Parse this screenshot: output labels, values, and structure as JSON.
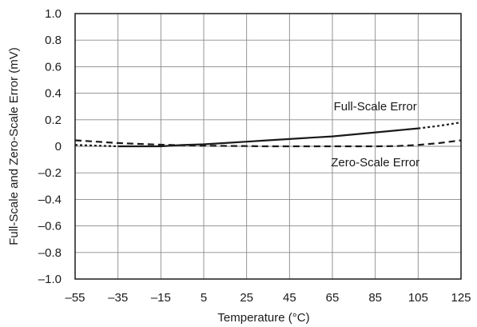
{
  "chart_data": {
    "type": "line",
    "title": "",
    "xlabel": "Temperature (°C)",
    "ylabel": "Full-Scale and Zero-Scale Error (mV)",
    "xlim": [
      -55,
      125
    ],
    "ylim": [
      -1.0,
      1.0
    ],
    "x_ticks": [
      -55,
      -35,
      -15,
      5,
      25,
      45,
      65,
      85,
      105,
      125
    ],
    "x_tick_labels": [
      "–55",
      "–35",
      "–15",
      "5",
      "25",
      "45",
      "65",
      "85",
      "105",
      "125"
    ],
    "y_ticks": [
      1.0,
      0.8,
      0.6,
      0.4,
      0.2,
      0,
      -0.2,
      -0.4,
      -0.6,
      -0.8,
      -1.0
    ],
    "y_tick_labels": [
      "1.0",
      "0.8",
      "0.6",
      "0.4",
      "0.2",
      "0",
      "–0.2",
      "–0.4",
      "–0.6",
      "–0.8",
      "–1.0"
    ],
    "grid": true,
    "legend": "none",
    "series": [
      {
        "name": "Full-Scale Error",
        "color": "#1a1a1a",
        "x": [
          -55,
          -45,
          -35,
          -25,
          -15,
          -5,
          5,
          15,
          25,
          35,
          45,
          55,
          65,
          75,
          85,
          95,
          105,
          115,
          125
        ],
        "y": [
          0.01,
          0.005,
          0.0,
          0.0,
          0.0,
          0.01,
          0.015,
          0.025,
          0.035,
          0.045,
          0.055,
          0.065,
          0.075,
          0.09,
          0.105,
          0.12,
          0.135,
          0.155,
          0.18
        ],
        "styles": [
          {
            "dash": "dot",
            "x_range": [
              -55,
              -35
            ]
          },
          {
            "dash": "solid",
            "x_range": [
              -35,
              105
            ]
          },
          {
            "dash": "dot",
            "x_range": [
              105,
              125
            ]
          }
        ]
      },
      {
        "name": "Zero-Scale Error",
        "color": "#1a1a1a",
        "x": [
          -55,
          -45,
          -35,
          -25,
          -15,
          -5,
          5,
          15,
          25,
          35,
          45,
          55,
          65,
          75,
          85,
          95,
          105,
          115,
          125
        ],
        "y": [
          0.045,
          0.035,
          0.025,
          0.018,
          0.012,
          0.008,
          0.005,
          0.003,
          0.002,
          0.0,
          0.0,
          0.0,
          0.0,
          0.0,
          0.0,
          0.002,
          0.01,
          0.025,
          0.045
        ],
        "styles": [
          {
            "dash": "dash",
            "x_range": [
              -55,
              125
            ]
          }
        ]
      }
    ],
    "annotations": [
      {
        "text": "Full-Scale Error",
        "x": 85,
        "y": 0.3
      },
      {
        "text": "Zero-Scale Error",
        "x": 85,
        "y": -0.12
      }
    ]
  }
}
